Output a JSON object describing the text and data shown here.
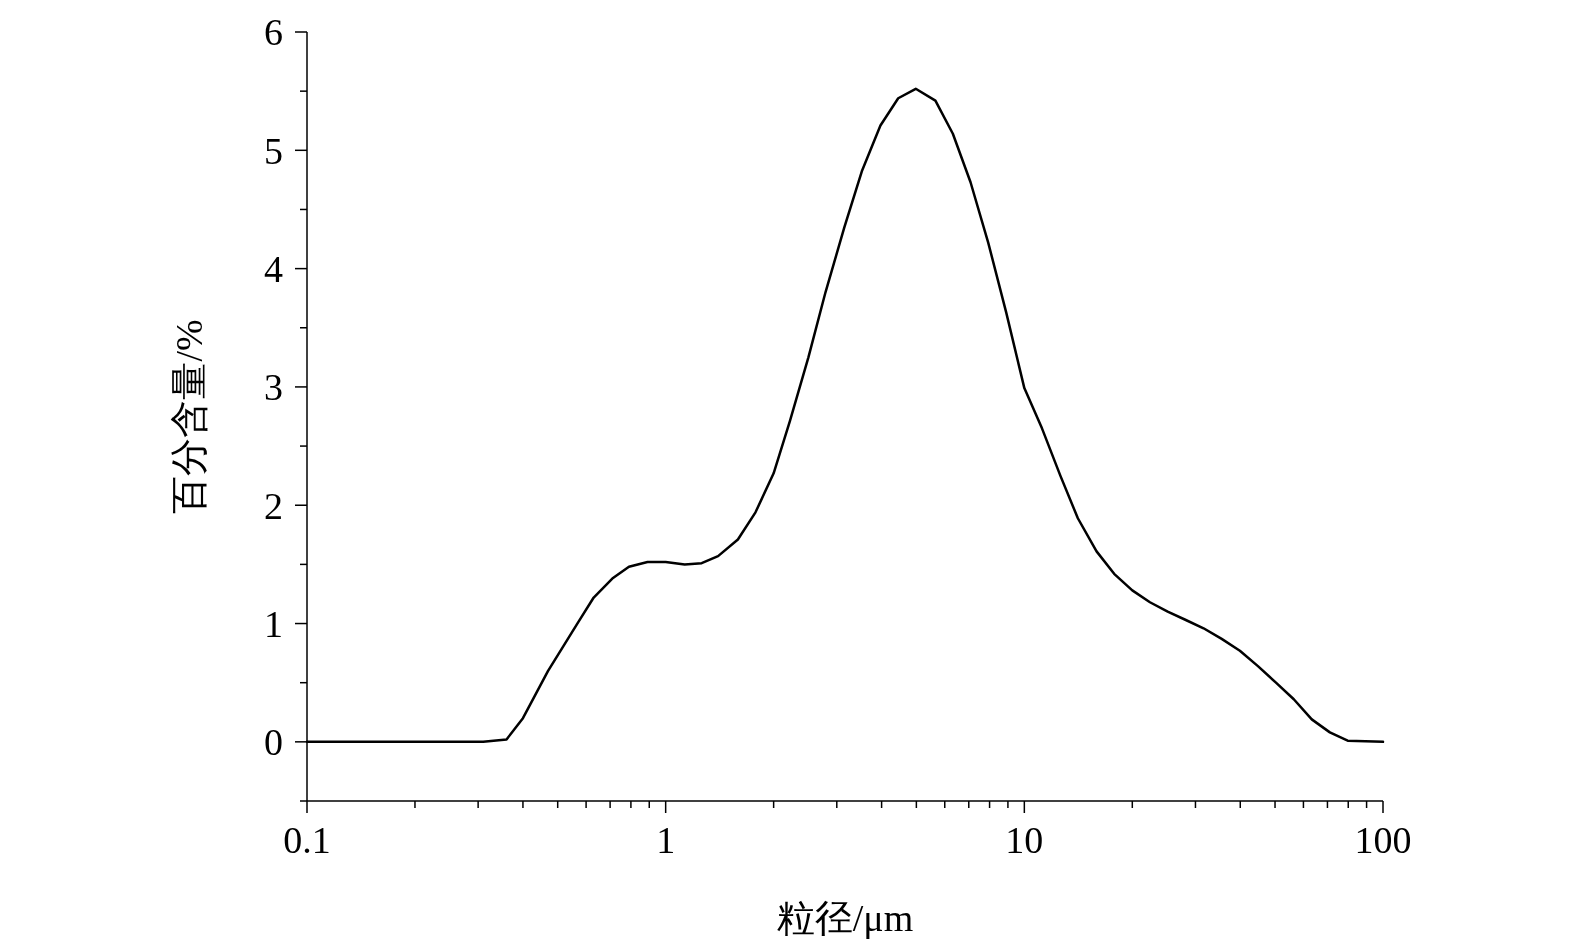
{
  "chart_data": {
    "type": "line",
    "xlabel": "粒径/μm",
    "ylabel": "百分含量/%",
    "log": "x",
    "xlim": [
      0.1,
      100
    ],
    "ylim": [
      -0.5,
      6
    ],
    "xticks": [
      0.1,
      {
        "value": 0.2,
        "label": null
      },
      {
        "value": 0.3,
        "label": null
      },
      {
        "value": 0.4,
        "label": null
      },
      {
        "value": 0.5,
        "label": null
      },
      {
        "value": 0.6,
        "label": null
      },
      {
        "value": 0.7,
        "label": null
      },
      {
        "value": 0.8,
        "label": null
      },
      {
        "value": 0.9,
        "label": null
      },
      1,
      {
        "value": 2,
        "label": null
      },
      {
        "value": 3,
        "label": null
      },
      {
        "value": 4,
        "label": null
      },
      {
        "value": 5,
        "label": null
      },
      {
        "value": 6,
        "label": null
      },
      {
        "value": 7,
        "label": null
      },
      {
        "value": 8,
        "label": null
      },
      {
        "value": 9,
        "label": null
      },
      10,
      {
        "value": 20,
        "label": null
      },
      {
        "value": 30,
        "label": null
      },
      {
        "value": 40,
        "label": null
      },
      {
        "value": 50,
        "label": null
      },
      {
        "value": 60,
        "label": null
      },
      {
        "value": 70,
        "label": null
      },
      {
        "value": 80,
        "label": null
      },
      {
        "value": 90,
        "label": null
      },
      100
    ],
    "yticks": [
      {
        "value": -0.5,
        "label": null
      },
      0,
      {
        "value": 0.5,
        "label": null
      },
      1,
      {
        "value": 1.5,
        "label": null
      },
      2,
      {
        "value": 2.5,
        "label": null
      },
      3,
      {
        "value": 3.5,
        "label": null
      },
      4,
      {
        "value": 4.5,
        "label": null
      },
      5,
      {
        "value": 5.5,
        "label": null
      },
      6
    ],
    "marker": "none",
    "line_style": "solid",
    "series": [
      {
        "color": "#000000",
        "x": [
          0.1,
          0.31,
          0.36,
          0.4,
          0.47,
          0.57,
          0.63,
          0.71,
          0.79,
          0.89,
          1.0,
          1.13,
          1.26,
          1.4,
          1.59,
          1.78,
          2.0,
          2.22,
          2.5,
          2.79,
          3.15,
          3.53,
          3.97,
          4.45,
          4.98,
          5.65,
          6.32,
          7.08,
          7.93,
          8.9,
          10,
          11.2,
          12.6,
          14.1,
          15.9,
          17.8,
          20.0,
          22.4,
          25.1,
          28.2,
          31.6,
          35.5,
          39.9,
          44.8,
          50.3,
          56.4,
          63.3,
          71.1,
          79.7,
          100
        ],
        "values": [
          0,
          0,
          0.02,
          0.2,
          0.6,
          1.01,
          1.22,
          1.38,
          1.48,
          1.52,
          1.52,
          1.5,
          1.51,
          1.57,
          1.71,
          1.94,
          2.27,
          2.71,
          3.25,
          3.8,
          4.35,
          4.83,
          5.21,
          5.44,
          5.52,
          5.42,
          5.14,
          4.73,
          4.22,
          3.63,
          2.99,
          2.65,
          2.25,
          1.89,
          1.61,
          1.42,
          1.28,
          1.18,
          1.1,
          1.03,
          0.96,
          0.87,
          0.77,
          0.64,
          0.5,
          0.36,
          0.19,
          0.08,
          0.01,
          0
        ]
      }
    ]
  }
}
